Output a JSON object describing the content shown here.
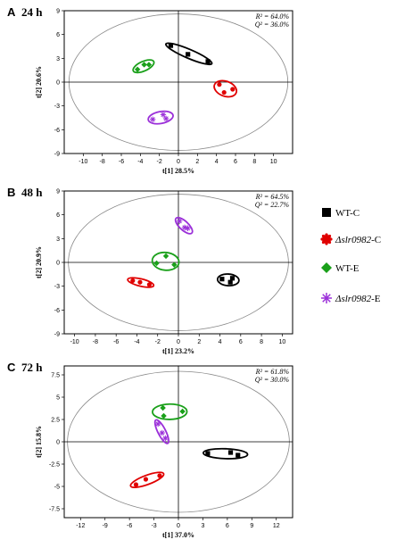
{
  "legend": [
    {
      "key": "wtc",
      "label": "WT-C",
      "color": "#000000",
      "marker": "square"
    },
    {
      "key": "slrc",
      "label": "Δslr0982-C",
      "color": "#e00000",
      "marker": "circle"
    },
    {
      "key": "wte",
      "label": "WT-E",
      "color": "#1aa01a",
      "marker": "diamond"
    },
    {
      "key": "slre",
      "label": "Δslr0982-E",
      "color": "#9b30d9",
      "marker": "star"
    }
  ],
  "chart_data": [
    {
      "type": "scatter",
      "panel": "A",
      "time_label": "24 h",
      "xlabel": "t[1] 28.5%",
      "ylabel": "t[2] 20.6%",
      "r2": "R² = 64.0%",
      "q2": "Q² = 36.0%",
      "xlim": [
        -12,
        12
      ],
      "ylim": [
        -9,
        9
      ],
      "xticks": [
        -10,
        -8,
        -6,
        -4,
        -2,
        0,
        2,
        4,
        6,
        8,
        10
      ],
      "yticks": [
        -9,
        -6,
        -3,
        0,
        3,
        6,
        9
      ],
      "ellipse_rx": 11.5,
      "ellipse_ry": 8.6,
      "series": [
        {
          "key": "wtc",
          "points": [
            [
              -0.8,
              4.6
            ],
            [
              1.0,
              3.5
            ],
            [
              3.1,
              2.6
            ]
          ]
        },
        {
          "key": "slrc",
          "points": [
            [
              4.3,
              -0.3
            ],
            [
              5.7,
              -0.9
            ],
            [
              4.8,
              -1.3
            ]
          ]
        },
        {
          "key": "wte",
          "points": [
            [
              -4.3,
              1.6
            ],
            [
              -3.6,
              2.2
            ],
            [
              -3.1,
              2.2
            ]
          ]
        },
        {
          "key": "slre",
          "points": [
            [
              -1.6,
              -4.1
            ],
            [
              -2.7,
              -4.7
            ],
            [
              -1.3,
              -4.6
            ]
          ]
        }
      ]
    },
    {
      "type": "scatter",
      "panel": "B",
      "time_label": "48 h",
      "xlabel": "t[1] 23.2%",
      "ylabel": "t[2] 20.9%",
      "r2": "R² = 64.5%",
      "q2": "Q² = 22.7%",
      "xlim": [
        -11,
        11
      ],
      "ylim": [
        -9,
        9
      ],
      "xticks": [
        -10,
        -8,
        -6,
        -4,
        -2,
        0,
        2,
        4,
        6,
        8,
        10
      ],
      "yticks": [
        -9,
        -6,
        -3,
        0,
        3,
        6,
        9
      ],
      "ellipse_rx": 10.6,
      "ellipse_ry": 8.6,
      "series": [
        {
          "key": "wtc",
          "points": [
            [
              4.2,
              -2.1
            ],
            [
              5.2,
              -2.0
            ],
            [
              5.0,
              -2.5
            ]
          ]
        },
        {
          "key": "slrc",
          "points": [
            [
              -4.4,
              -2.3
            ],
            [
              -3.7,
              -2.5
            ],
            [
              -2.8,
              -2.8
            ]
          ]
        },
        {
          "key": "wte",
          "points": [
            [
              -2.1,
              -0.1
            ],
            [
              -1.2,
              0.8
            ],
            [
              -0.4,
              -0.3
            ]
          ]
        },
        {
          "key": "slre",
          "points": [
            [
              0.1,
              5.2
            ],
            [
              0.6,
              4.4
            ],
            [
              0.9,
              4.3
            ]
          ]
        }
      ]
    },
    {
      "type": "scatter",
      "panel": "C",
      "time_label": "72 h",
      "xlabel": "t[1] 37.0%",
      "ylabel": "t[2] 15.8%",
      "r2": "R² = 61.8%",
      "q2": "Q² = 30.0%",
      "xlim": [
        -14,
        14
      ],
      "ylim": [
        -8.5,
        8.5
      ],
      "xticks": [
        -12,
        -9,
        -6,
        -3,
        0,
        3,
        6,
        9,
        12
      ],
      "yticks": [
        -7.5,
        -5,
        -2.5,
        0,
        2.5,
        5,
        7.5
      ],
      "ytick_labels": [
        "-7.5",
        "-5",
        "-2.5",
        "0",
        "2.5",
        "5",
        "7.5"
      ],
      "ellipse_rx": 13.6,
      "ellipse_ry": 7.9,
      "series": [
        {
          "key": "wtc",
          "points": [
            [
              3.6,
              -1.3
            ],
            [
              6.4,
              -1.2
            ],
            [
              7.3,
              -1.5
            ]
          ]
        },
        {
          "key": "slrc",
          "points": [
            [
              -5.2,
              -4.8
            ],
            [
              -4.0,
              -4.2
            ],
            [
              -2.3,
              -3.8
            ]
          ]
        },
        {
          "key": "wte",
          "points": [
            [
              -1.9,
              3.8
            ],
            [
              -1.8,
              2.9
            ],
            [
              0.5,
              3.4
            ]
          ]
        },
        {
          "key": "slre",
          "points": [
            [
              -2.5,
              2.0
            ],
            [
              -2.0,
              1.0
            ],
            [
              -1.6,
              0.4
            ]
          ]
        }
      ]
    }
  ]
}
